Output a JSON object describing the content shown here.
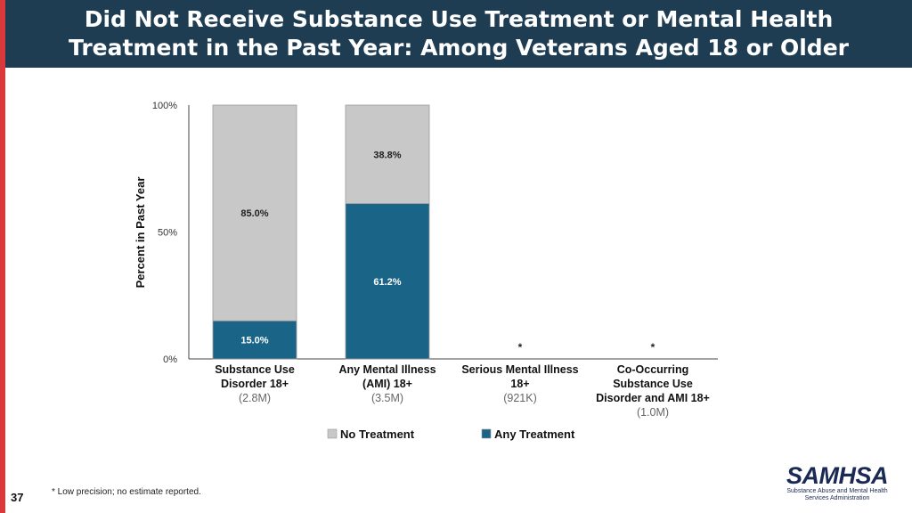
{
  "header": {
    "title_line1": "Did Not Receive Substance Use Treatment or Mental Health",
    "title_line2": "Treatment in the Past Year: Among Veterans Aged 18 or Older"
  },
  "colors": {
    "no_treatment": "#c8c8c8",
    "any_treatment": "#1a6587",
    "header_bg": "#1f3d52",
    "accent": "#d9393b"
  },
  "chart_data": {
    "type": "bar",
    "stacked": true,
    "ylabel": "Percent in Past Year",
    "ylim": [
      0,
      100
    ],
    "yticks": [
      "0%",
      "50%",
      "100%"
    ],
    "categories": [
      {
        "lines": [
          "Substance Use",
          "Disorder 18+"
        ],
        "n": "(2.8M)"
      },
      {
        "lines": [
          "Any Mental Illness",
          "(AMI) 18+"
        ],
        "n": "(3.5M)"
      },
      {
        "lines": [
          "Serious Mental Illness",
          "18+"
        ],
        "n": "(921K)"
      },
      {
        "lines": [
          "Co-Occurring",
          "Substance Use",
          "Disorder and AMI 18+"
        ],
        "n": "(1.0M)"
      }
    ],
    "series": [
      {
        "name": "Any Treatment",
        "values": [
          15.0,
          61.2,
          null,
          null
        ],
        "labels": [
          "15.0%",
          "61.2%",
          "*",
          "*"
        ]
      },
      {
        "name": "No Treatment",
        "values": [
          85.0,
          38.8,
          null,
          null
        ],
        "labels": [
          "85.0%",
          "38.8%",
          "",
          ""
        ]
      }
    ],
    "legend": [
      "No Treatment",
      "Any Treatment"
    ],
    "legend_position": "bottom"
  },
  "footnote": "* Low precision; no estimate reported.",
  "slide_number": "37",
  "logo": {
    "word": "SAMHSA",
    "sub_line1": "Substance Abuse and Mental Health",
    "sub_line2": "Services Administration"
  }
}
